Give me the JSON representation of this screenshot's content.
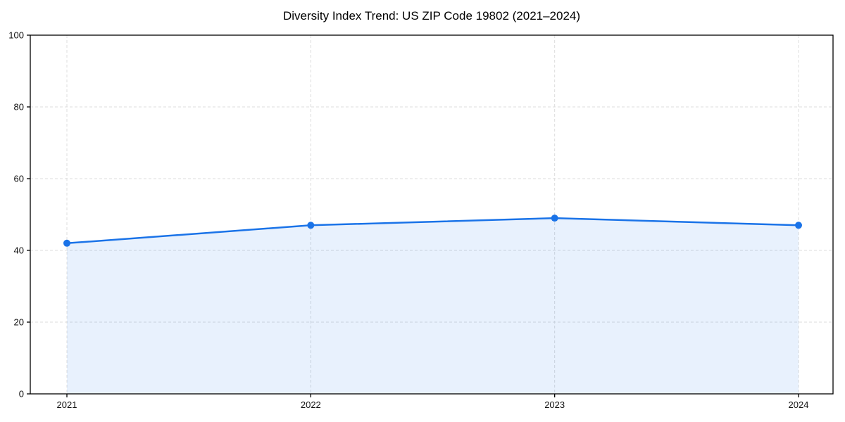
{
  "chart_data": {
    "type": "area",
    "title": "Diversity Index Trend: US ZIP Code 19802 (2021–2024)",
    "categories": [
      "2021",
      "2022",
      "2023",
      "2024"
    ],
    "values": [
      42,
      47,
      49,
      47
    ],
    "xlabel": "",
    "ylabel": "",
    "ylim": [
      0,
      100
    ],
    "yticks": [
      0,
      20,
      40,
      60,
      80,
      100
    ],
    "grid": true,
    "grid_style": "dashed",
    "legend": "none",
    "marker": "circle",
    "colors": {
      "line": "#1a73e8",
      "marker": "#1a73e8",
      "fill": "#1a73e8",
      "fill_opacity": 0.1,
      "grid": "#dcdcdc",
      "axis": "#000000",
      "text": "#111111",
      "background": "#ffffff"
    }
  }
}
